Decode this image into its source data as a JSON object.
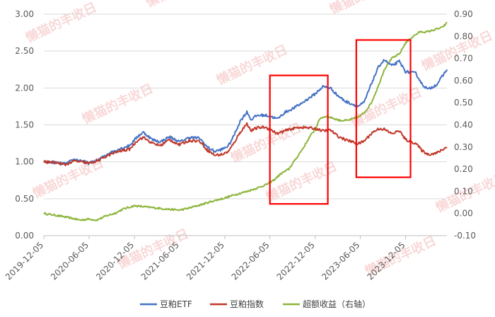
{
  "chart_data": {
    "type": "line",
    "title": "",
    "xlabel": "",
    "ylabel": "",
    "ylim": [
      0,
      3
    ],
    "y2lim": [
      -0.1,
      0.9
    ],
    "yticks": [
      "0.00",
      "0.50",
      "1.00",
      "1.50",
      "2.00",
      "2.50",
      "3.00"
    ],
    "y2ticks": [
      "-0.10",
      "0.00",
      "0.10",
      "0.20",
      "0.30",
      "0.40",
      "0.50",
      "0.60",
      "0.70",
      "0.80",
      "0.90"
    ],
    "xticks": [
      "2019-12-05",
      "2020-06-05",
      "2020-12-05",
      "2021-06-05",
      "2021-12-05",
      "2022-06-05",
      "2022-12-05",
      "2023-06-05",
      "2023-12-05"
    ],
    "x_start": "2019-12-05",
    "x_end": "2024-05-20",
    "grid": true,
    "legend_position": "bottom",
    "series": [
      {
        "name": "豆粕ETF",
        "axis": "left",
        "color": "#4472C4",
        "points": [
          [
            "2019-12-05",
            1.0
          ],
          [
            "2020-01-20",
            0.99
          ],
          [
            "2020-03-01",
            0.97
          ],
          [
            "2020-04-05",
            1.03
          ],
          [
            "2020-05-01",
            1.02
          ],
          [
            "2020-06-05",
            0.98
          ],
          [
            "2020-07-15",
            1.03
          ],
          [
            "2020-08-15",
            1.1
          ],
          [
            "2020-10-01",
            1.17
          ],
          [
            "2020-11-15",
            1.22
          ],
          [
            "2020-12-20",
            1.35
          ],
          [
            "2021-01-10",
            1.4
          ],
          [
            "2021-02-15",
            1.3
          ],
          [
            "2021-03-20",
            1.27
          ],
          [
            "2021-04-25",
            1.34
          ],
          [
            "2021-06-05",
            1.27
          ],
          [
            "2021-07-15",
            1.33
          ],
          [
            "2021-08-25",
            1.32
          ],
          [
            "2021-09-25",
            1.2
          ],
          [
            "2021-10-25",
            1.14
          ],
          [
            "2021-11-25",
            1.17
          ],
          [
            "2021-12-20",
            1.22
          ],
          [
            "2022-01-10",
            1.35
          ],
          [
            "2022-02-05",
            1.55
          ],
          [
            "2022-03-05",
            1.68
          ],
          [
            "2022-03-20",
            1.57
          ],
          [
            "2022-04-15",
            1.63
          ],
          [
            "2022-05-15",
            1.63
          ],
          [
            "2022-06-05",
            1.62
          ],
          [
            "2022-07-05",
            1.58
          ],
          [
            "2022-08-05",
            1.67
          ],
          [
            "2022-09-05",
            1.72
          ],
          [
            "2022-10-05",
            1.78
          ],
          [
            "2022-11-05",
            1.85
          ],
          [
            "2022-12-05",
            1.92
          ],
          [
            "2023-01-05",
            2.02
          ],
          [
            "2023-02-05",
            2.0
          ],
          [
            "2023-03-05",
            1.9
          ],
          [
            "2023-04-05",
            1.82
          ],
          [
            "2023-05-05",
            1.78
          ],
          [
            "2023-05-25",
            1.75
          ],
          [
            "2023-06-20",
            1.8
          ],
          [
            "2023-07-25",
            2.1
          ],
          [
            "2023-08-20",
            2.3
          ],
          [
            "2023-09-10",
            2.38
          ],
          [
            "2023-10-10",
            2.3
          ],
          [
            "2023-11-10",
            2.36
          ],
          [
            "2023-12-05",
            2.22
          ],
          [
            "2024-01-15",
            2.2
          ],
          [
            "2024-02-10",
            2.05
          ],
          [
            "2024-03-05",
            1.98
          ],
          [
            "2024-04-10",
            2.05
          ],
          [
            "2024-05-20",
            2.25
          ]
        ]
      },
      {
        "name": "豆粕指数",
        "axis": "left",
        "color": "#C0392B",
        "points": [
          [
            "2019-12-05",
            1.0
          ],
          [
            "2020-01-20",
            0.99
          ],
          [
            "2020-03-01",
            0.96
          ],
          [
            "2020-04-05",
            1.01
          ],
          [
            "2020-05-01",
            1.0
          ],
          [
            "2020-06-05",
            0.98
          ],
          [
            "2020-07-15",
            1.02
          ],
          [
            "2020-08-15",
            1.08
          ],
          [
            "2020-10-01",
            1.14
          ],
          [
            "2020-11-15",
            1.17
          ],
          [
            "2020-12-20",
            1.3
          ],
          [
            "2021-01-10",
            1.33
          ],
          [
            "2021-02-15",
            1.25
          ],
          [
            "2021-03-20",
            1.22
          ],
          [
            "2021-04-25",
            1.3
          ],
          [
            "2021-06-05",
            1.23
          ],
          [
            "2021-07-15",
            1.29
          ],
          [
            "2021-08-25",
            1.28
          ],
          [
            "2021-09-25",
            1.16
          ],
          [
            "2021-10-25",
            1.09
          ],
          [
            "2021-11-25",
            1.1
          ],
          [
            "2021-12-20",
            1.14
          ],
          [
            "2022-01-10",
            1.25
          ],
          [
            "2022-02-05",
            1.4
          ],
          [
            "2022-03-05",
            1.52
          ],
          [
            "2022-03-20",
            1.42
          ],
          [
            "2022-04-15",
            1.46
          ],
          [
            "2022-05-15",
            1.47
          ],
          [
            "2022-06-05",
            1.44
          ],
          [
            "2022-07-05",
            1.38
          ],
          [
            "2022-08-05",
            1.42
          ],
          [
            "2022-09-05",
            1.45
          ],
          [
            "2022-10-05",
            1.47
          ],
          [
            "2022-11-05",
            1.46
          ],
          [
            "2022-12-05",
            1.45
          ],
          [
            "2023-01-05",
            1.42
          ],
          [
            "2023-02-05",
            1.43
          ],
          [
            "2023-03-05",
            1.35
          ],
          [
            "2023-04-05",
            1.3
          ],
          [
            "2023-05-05",
            1.27
          ],
          [
            "2023-05-25",
            1.24
          ],
          [
            "2023-06-20",
            1.28
          ],
          [
            "2023-07-25",
            1.4
          ],
          [
            "2023-08-20",
            1.45
          ],
          [
            "2023-09-10",
            1.44
          ],
          [
            "2023-10-10",
            1.38
          ],
          [
            "2023-11-10",
            1.42
          ],
          [
            "2023-12-05",
            1.3
          ],
          [
            "2024-01-15",
            1.25
          ],
          [
            "2024-02-10",
            1.15
          ],
          [
            "2024-03-05",
            1.1
          ],
          [
            "2024-04-10",
            1.12
          ],
          [
            "2024-05-20",
            1.2
          ]
        ]
      },
      {
        "name": "超额收益（右轴）",
        "axis": "right",
        "color": "#8DB53C",
        "points": [
          [
            "2019-12-05",
            0.0
          ],
          [
            "2020-02-01",
            -0.01
          ],
          [
            "2020-03-20",
            -0.02
          ],
          [
            "2020-05-01",
            -0.03
          ],
          [
            "2020-06-05",
            -0.025
          ],
          [
            "2020-07-05",
            -0.03
          ],
          [
            "2020-08-15",
            -0.01
          ],
          [
            "2020-09-15",
            0.0
          ],
          [
            "2020-10-20",
            0.02
          ],
          [
            "2020-12-05",
            0.035
          ],
          [
            "2021-01-15",
            0.03
          ],
          [
            "2021-03-01",
            0.025
          ],
          [
            "2021-04-15",
            0.02
          ],
          [
            "2021-06-05",
            0.015
          ],
          [
            "2021-07-15",
            0.025
          ],
          [
            "2021-09-01",
            0.04
          ],
          [
            "2021-10-15",
            0.055
          ],
          [
            "2021-12-05",
            0.07
          ],
          [
            "2022-01-15",
            0.085
          ],
          [
            "2022-03-05",
            0.1
          ],
          [
            "2022-04-15",
            0.115
          ],
          [
            "2022-05-20",
            0.13
          ],
          [
            "2022-06-20",
            0.15
          ],
          [
            "2022-07-20",
            0.18
          ],
          [
            "2022-08-20",
            0.2
          ],
          [
            "2022-09-20",
            0.25
          ],
          [
            "2022-10-20",
            0.3
          ],
          [
            "2022-11-15",
            0.35
          ],
          [
            "2022-12-05",
            0.38
          ],
          [
            "2022-12-25",
            0.43
          ],
          [
            "2023-01-20",
            0.44
          ],
          [
            "2023-02-15",
            0.43
          ],
          [
            "2023-03-15",
            0.42
          ],
          [
            "2023-04-15",
            0.42
          ],
          [
            "2023-05-15",
            0.43
          ],
          [
            "2023-06-05",
            0.44
          ],
          [
            "2023-06-25",
            0.46
          ],
          [
            "2023-07-20",
            0.5
          ],
          [
            "2023-08-15",
            0.57
          ],
          [
            "2023-09-10",
            0.65
          ],
          [
            "2023-10-10",
            0.7
          ],
          [
            "2023-11-10",
            0.72
          ],
          [
            "2023-12-05",
            0.77
          ],
          [
            "2024-01-05",
            0.8
          ],
          [
            "2024-02-01",
            0.82
          ],
          [
            "2024-03-01",
            0.82
          ],
          [
            "2024-04-01",
            0.83
          ],
          [
            "2024-05-01",
            0.84
          ],
          [
            "2024-05-20",
            0.86
          ]
        ]
      }
    ],
    "annotations": [
      {
        "type": "rectangle",
        "color": "#FF0000",
        "x_from": "2022-06-05",
        "x_to": "2023-01-25",
        "y_from": 0.43,
        "y_to": 2.17
      },
      {
        "type": "rectangle",
        "color": "#FF0000",
        "x_from": "2023-05-20",
        "x_to": "2023-12-25",
        "y_from": 0.79,
        "y_to": 2.65
      }
    ]
  },
  "legend": {
    "items": [
      "豆粕ETF",
      "豆粕指数",
      "超额收益（右轴）"
    ]
  },
  "watermark": "懒猫的丰收日"
}
